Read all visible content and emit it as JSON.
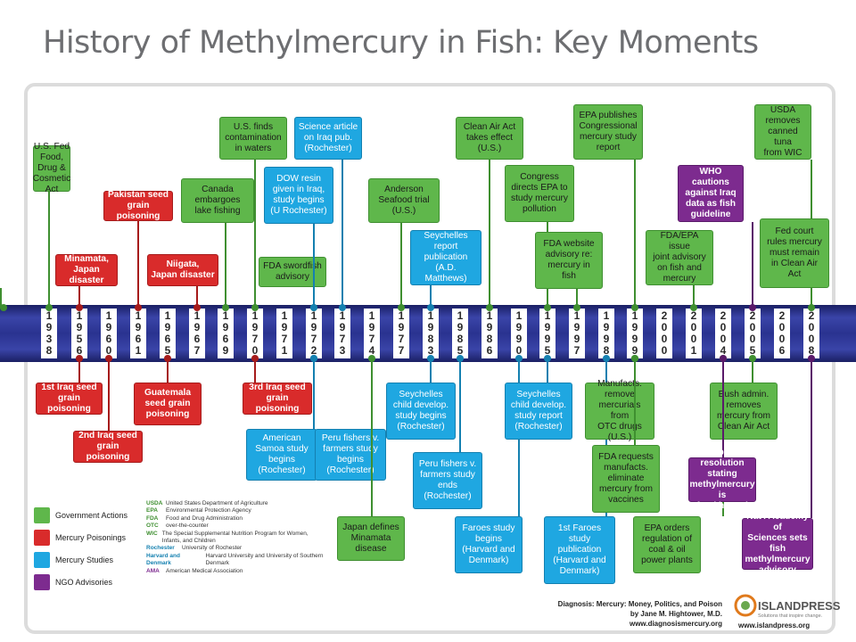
{
  "title": "History of Methylmercury in Fish: Key Moments",
  "colors": {
    "government": "#5fb74b",
    "poisoning": "#d92b2b",
    "study": "#1fa7e1",
    "ngo": "#7d2b8f",
    "band": "#2a3390"
  },
  "years": [
    "1938",
    "1956",
    "1960",
    "1961",
    "1965",
    "1967",
    "1969",
    "1970",
    "1971",
    "1972",
    "1973",
    "1974",
    "1977",
    "1983",
    "1985",
    "1986",
    "1990",
    "1995",
    "1997",
    "1998",
    "1999",
    "2000",
    "2001",
    "2004",
    "2005",
    "2006",
    "2008"
  ],
  "events": [
    {
      "type": "gov",
      "text": "U.S. Fed\nFood, Drug &\nCosmetic Act"
    },
    {
      "type": "poi",
      "text": "Minamata,\nJapan disaster"
    },
    {
      "type": "poi",
      "text": "Pakistan seed\ngrain poisoning"
    },
    {
      "type": "poi",
      "text": "Niigata,\nJapan disaster"
    },
    {
      "type": "gov",
      "text": "Canada\nembargoes\nlake fishing"
    },
    {
      "type": "gov",
      "text": "U.S. finds\ncontamination\nin waters"
    },
    {
      "type": "gov",
      "text": "FDA swordfish\nadvisory"
    },
    {
      "type": "stu",
      "text": "DOW resin\ngiven in Iraq,\nstudy begins\n(U Rochester)"
    },
    {
      "type": "stu",
      "text": "Science article\non Iraq pub.\n(Rochester)"
    },
    {
      "type": "gov",
      "text": "Anderson\nSeafood trial\n(U.S.)"
    },
    {
      "type": "stu",
      "text": "Seychelles\nreport\npublication\n(A.D. Matthews)"
    },
    {
      "type": "gov",
      "text": "Clean Air Act\ntakes effect\n(U.S.)"
    },
    {
      "type": "gov",
      "text": "Congress\ndirects EPA to\nstudy mercury\npollution"
    },
    {
      "type": "gov",
      "text": "FDA website\nadvisory re:\nmercury in\nfish"
    },
    {
      "type": "gov",
      "text": "EPA publishes\nCongressional\nmercury study\nreport"
    },
    {
      "type": "gov",
      "text": "FDA/EPA issue\njoint advisory\non fish and\nmercury"
    },
    {
      "type": "ngo",
      "text": "WHO cautions\nagainst Iraq\ndata as fish\nguideline"
    },
    {
      "type": "gov",
      "text": "USDA\nremoves\ncanned tuna\nfrom WIC"
    },
    {
      "type": "gov",
      "text": "Fed court\nrules mercury\nmust remain\nin Clean Air\nAct"
    },
    {
      "type": "poi",
      "text": "1st Iraq seed\ngrain poisoning"
    },
    {
      "type": "poi",
      "text": "2nd Iraq seed\ngrain poisoning"
    },
    {
      "type": "poi",
      "text": "Guatemala\nseed grain\npoisoning"
    },
    {
      "type": "poi",
      "text": "3rd Iraq seed\ngrain poisoning"
    },
    {
      "type": "stu",
      "text": "American\nSamoa study\nbegins\n(Rochester)"
    },
    {
      "type": "stu",
      "text": "Peru fishers v.\nfarmers study\nbegins\n(Rochester)"
    },
    {
      "type": "gov",
      "text": "Japan defines\nMinamata\ndisease"
    },
    {
      "type": "stu",
      "text": "Seychelles\nchild develop.\nstudy begins\n(Rochester)"
    },
    {
      "type": "stu",
      "text": "Peru fishers v.\nfarmers study\nends\n(Rochester)"
    },
    {
      "type": "stu",
      "text": "Faroes study\nbegins\n(Harvard and\nDenmark)"
    },
    {
      "type": "stu",
      "text": "Seychelles\nchild develop.\nstudy report\n(Rochester)"
    },
    {
      "type": "stu",
      "text": "1st Faroes\nstudy\npublication\n(Harvard and\nDenmark)"
    },
    {
      "type": "gov",
      "text": "Manufacts.\nremove\nmercurials from\nOTC drugs (U.S.)"
    },
    {
      "type": "gov",
      "text": "FDA requests\nmanufacts.\neliminate\nmercury from\nvaccines"
    },
    {
      "type": "gov",
      "text": "EPA orders\nregulation of\ncoal & oil\npower plants"
    },
    {
      "type": "gov",
      "text": "Bush admin.\nremoves\nmercury from\nClean Air Act"
    },
    {
      "type": "ngo",
      "text": "AMA passes\nresolution stating\nmethylmercury is\nfood hazard"
    },
    {
      "type": "ngo",
      "text": "Nat'l Academy of\nSciences sets fish\nmethylmercury\nadvisory"
    }
  ],
  "legend": [
    {
      "label": "Government Actions",
      "color": "#5fb74b"
    },
    {
      "label": "Mercury Poisonings",
      "color": "#d92b2b"
    },
    {
      "label": "Mercury Studies",
      "color": "#1fa7e1"
    },
    {
      "label": "NGO Advisories",
      "color": "#7d2b8f"
    }
  ],
  "abbreviations": [
    {
      "key": "USDA",
      "value": "United States Department of Agriculture",
      "color": "#3f8f30"
    },
    {
      "key": "EPA",
      "value": "Environmental Protection Agency",
      "color": "#3f8f30"
    },
    {
      "key": "FDA",
      "value": "Food and Drug Administration",
      "color": "#3f8f30"
    },
    {
      "key": "OTC",
      "value": "over-the-counter",
      "color": "#3f8f30"
    },
    {
      "key": "WIC",
      "value": "The Special Supplemental Nutrition Program for Women, Infants, and Children",
      "color": "#3f8f30"
    },
    {
      "key": "Rochester",
      "value": "University of Rochester",
      "color": "#1480b0"
    },
    {
      "key": "Harvard and Denmark",
      "value": "Harvard University and University of Southern Denmark",
      "color": "#1480b0"
    },
    {
      "key": "AMA",
      "value": "American Medical Association",
      "color": "#7d2b8f"
    }
  ],
  "credit": {
    "line1": "Diagnosis: Mercury: Money, Politics, and Poison",
    "line2": "by Jane M. Hightower, M.D.",
    "line3": "www.diagnosismercury.org"
  },
  "logo": {
    "name": "ISLANDPRESS",
    "tagline": "Solutions that inspire change.",
    "url": "www.islandpress.org"
  }
}
